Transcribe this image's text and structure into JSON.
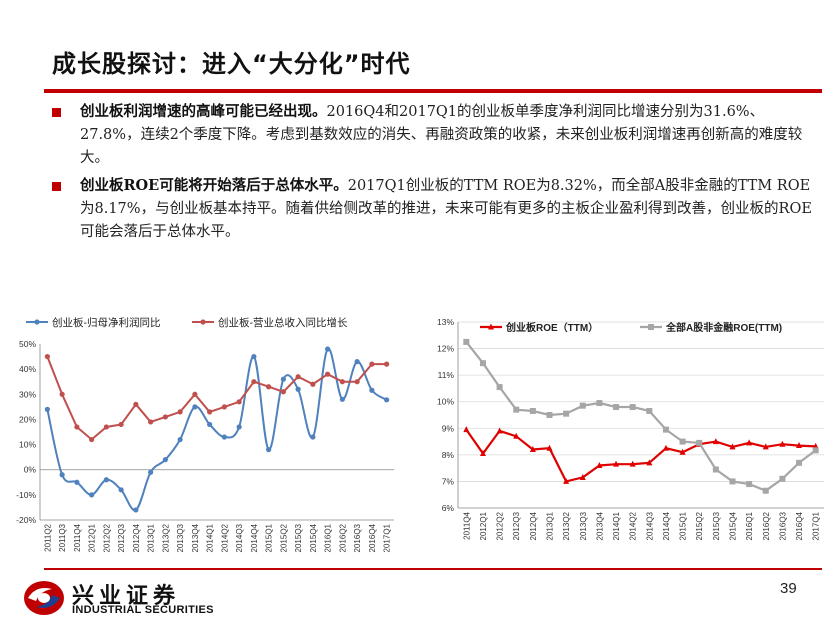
{
  "slide": {
    "title": "成长股探讨：进入“大分化”时代",
    "page_number": "39"
  },
  "bullets": [
    {
      "bold": "创业板利润增速的高峰可能已经出现。",
      "text": "2016Q4和2017Q1的创业板单季度净利润同比增速分别为31.6%、27.8%，连续2个季度下降。考虑到基数效应的消失、再融资政策的收紧，未来创业板利润增速再创新高的难度较大。"
    },
    {
      "bold": "创业板ROE可能将开始落后于总体水平。",
      "text": "2017Q1创业板的TTM ROE为8.32%，而全部A股非金融的TTM ROE为8.17%，与创业板基本持平。随着供给侧改革的推进，未来可能有更多的主板企业盈利得到改善，创业板的ROE可能会落后于总体水平。"
    }
  ],
  "logo": {
    "chinese": "兴业证券",
    "english": "INDUSTRIAL SECURITIES"
  },
  "chart_data": [
    {
      "type": "line",
      "categories": [
        "2011Q2",
        "2011Q3",
        "2011Q4",
        "2012Q1",
        "2012Q2",
        "2012Q3",
        "2012Q4",
        "2013Q1",
        "2013Q2",
        "2013Q3",
        "2013Q4",
        "2014Q1",
        "2014Q2",
        "2014Q3",
        "2014Q4",
        "2015Q1",
        "2015Q2",
        "2015Q3",
        "2015Q4",
        "2016Q1",
        "2016Q2",
        "2016Q3",
        "2016Q4",
        "2017Q1"
      ],
      "series": [
        {
          "name": "创业板-归母净利润同比",
          "color": "#4f81bd",
          "marker": "circle",
          "smooth": true,
          "values": [
            24,
            -2,
            -5,
            -10,
            -4,
            -8,
            -16,
            -1,
            4,
            12,
            25,
            18,
            13,
            17,
            45,
            8,
            36,
            32,
            13,
            48,
            28,
            43,
            31.6,
            27.8
          ]
        },
        {
          "name": "创业板-营业总收入同比增长",
          "color": "#c0504d",
          "marker": "circle",
          "smooth": false,
          "values": [
            45,
            30,
            17,
            12,
            17,
            18,
            26,
            19,
            21,
            23,
            30,
            23,
            25,
            27,
            35,
            33,
            31,
            37,
            34,
            38,
            35,
            35,
            42,
            42
          ]
        }
      ],
      "ylim": [
        -20,
        50
      ],
      "yticks": [
        "-20%",
        "-10%",
        "0%",
        "10%",
        "20%",
        "30%",
        "40%",
        "50%"
      ],
      "legend": "top"
    },
    {
      "type": "line",
      "categories": [
        "2011Q4",
        "2012Q1",
        "2012Q2",
        "2012Q3",
        "2012Q4",
        "2013Q1",
        "2013Q2",
        "2013Q3",
        "2013Q4",
        "2014Q1",
        "2014Q2",
        "2014Q3",
        "2014Q4",
        "2015Q1",
        "2015Q2",
        "2015Q3",
        "2015Q4",
        "2016Q1",
        "2016Q2",
        "2016Q3",
        "2016Q4",
        "2017Q1"
      ],
      "series": [
        {
          "name": "创业板ROE（TTM）",
          "color": "#e00000",
          "marker": "triangle",
          "values": [
            8.95,
            8.05,
            8.9,
            8.7,
            8.2,
            8.25,
            7.0,
            7.15,
            7.6,
            7.65,
            7.65,
            7.7,
            8.25,
            8.1,
            8.4,
            8.5,
            8.3,
            8.45,
            8.3,
            8.4,
            8.35,
            8.32
          ]
        },
        {
          "name": "全部A股非金融ROE(TTM)",
          "color": "#a6a6a6",
          "marker": "square",
          "values": [
            12.25,
            11.45,
            10.55,
            9.7,
            9.65,
            9.5,
            9.55,
            9.85,
            9.95,
            9.8,
            9.8,
            9.65,
            8.95,
            8.5,
            8.45,
            7.45,
            7.0,
            6.9,
            6.65,
            7.1,
            7.7,
            8.17
          ]
        }
      ],
      "ylim": [
        6,
        13
      ],
      "yticks": [
        "6%",
        "7%",
        "8%",
        "9%",
        "10%",
        "11%",
        "12%",
        "13%"
      ],
      "legend": "top"
    }
  ]
}
